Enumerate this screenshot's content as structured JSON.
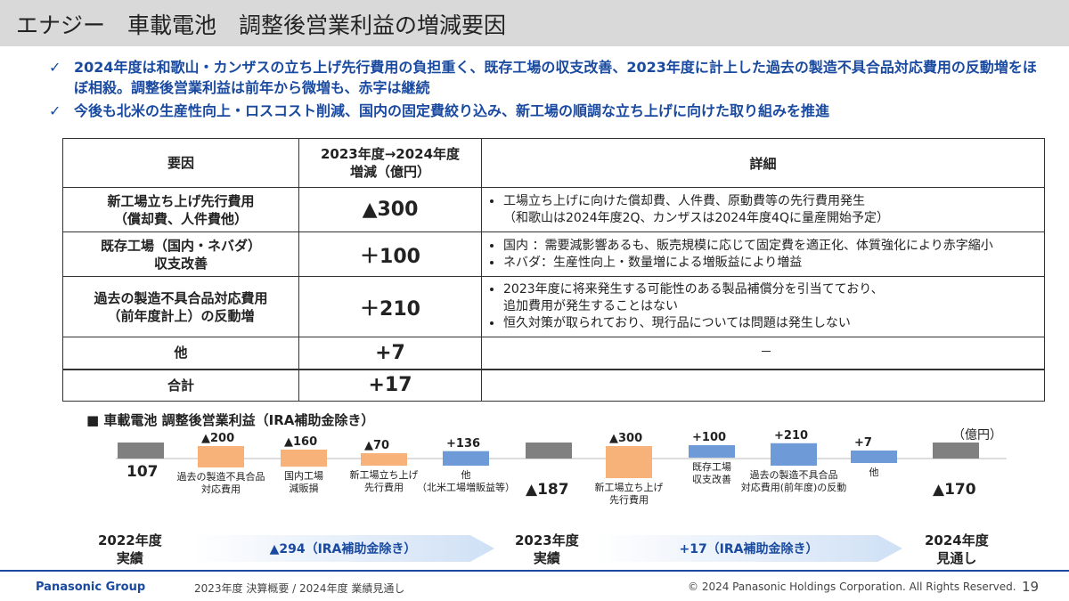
{
  "title": "エナジー　車載電池　調整後営業利益の増減要因",
  "bullets": [
    "2024年度は和歌山・カンザスの立ち上げ先行費用の負担重く、既存工場の収支改善、2023年度に計上した過去の製造不具合品対応費用の反動増をほぼ相殺。調整後営業利益は前年から微増も、赤字は継続",
    "今後も北米の生産性向上・ロスコスト削減、国内の固定費絞り込み、新工場の順調な立ち上げに向けた取り組みを推進"
  ],
  "check_mark": "✓",
  "table": {
    "headers": [
      "要因",
      "2023年度→2024年度",
      "増減（億円）",
      "詳細"
    ],
    "rows": [
      {
        "factor": "新工場立ち上げ先行費用",
        "factor_sub": "（償却費、人件費他）",
        "change": "▲300",
        "details": [
          "工場立ち上げに向けた償却費、人件費、原動費等の先行費用発生",
          "（和歌山は2024年度2Q、カンザスは2024年度4Qに量産開始予定）"
        ]
      },
      {
        "factor": "既存工場（国内・ネバダ）",
        "factor_sub": "収支改善",
        "change": "＋100",
        "details": [
          "国内 ：需要減影響あるも、販売規模に応じて固定費を適正化、体質強化により赤字縮小",
          "ネバダ：生産性向上・数量増による増販益により増益"
        ]
      },
      {
        "factor": "過去の製造不具合品対応費用",
        "factor_sub": "（前年度計上）の反動増",
        "change": "＋210",
        "details": [
          "2023年度に将来発生する可能性のある製品補償分を引当てており、",
          "追加費用が発生することはない",
          "恒久対策が取られており、現行品については問題は発生しない"
        ]
      },
      {
        "factor": "他",
        "factor_sub": "",
        "change": "+7",
        "details": [
          "－"
        ]
      },
      {
        "factor": "合計",
        "factor_sub": "",
        "change": "+17",
        "details": []
      }
    ]
  },
  "chart_title": "■ 車載電池 調整後営業利益（IRA補助金除き）",
  "unit": "（億円）",
  "chart_data": {
    "type": "bar",
    "subtype": "waterfall",
    "categories": [
      "2022年度実績",
      "過去の製造不具合品対応費用",
      "国内工場減販損",
      "新工場立ち上げ先行費用",
      "他（北米工場増販益等）",
      "2023年度実績",
      "新工場立ち上げ先行費用",
      "既存工場収支改善",
      "過去の製造不具合品対応費用(前年度)の反動",
      "他",
      "2024年度見通し"
    ],
    "values": [
      107,
      -200,
      -160,
      -70,
      136,
      -187,
      -300,
      100,
      210,
      7,
      -170
    ],
    "value_labels": [
      "107",
      "▲200",
      "▲160",
      "▲70",
      "+136",
      "▲187",
      "▲300",
      "+100",
      "+210",
      "+7",
      "▲170"
    ],
    "category_labels": [
      "",
      "過去の製造不具合品|対応費用",
      "国内工場|減販損",
      "新工場立ち上げ|先行費用",
      "他|（北米工場増販益等）",
      "",
      "新工場立ち上げ|先行費用",
      "既存工場|収支改善",
      "過去の製造不具合品|対応費用(前年度)の反動",
      "他",
      ""
    ],
    "kinds": [
      "total",
      "delta",
      "delta",
      "delta",
      "delta",
      "total",
      "delta",
      "delta",
      "delta",
      "delta",
      "total"
    ],
    "colors": {
      "total": "#808080",
      "negative": "#f7b27a",
      "positive": "#6f9ad8",
      "arrow": "#cfe0f5"
    }
  },
  "periods": [
    {
      "label": "2022年度",
      "label2": "実績"
    },
    {
      "label": "2023年度",
      "label2": "実績"
    },
    {
      "label": "2024年度",
      "label2": "見通し"
    }
  ],
  "arrows": [
    "▲294（IRA補助金除き）",
    "+17（IRA補助金除き）"
  ],
  "footer": {
    "brand": "Panasonic Group",
    "doc": "2023年度 決算概要 / 2024年度 業績見通し",
    "copyright": "© 2024 Panasonic Holdings Corporation. All Rights Reserved.",
    "page": "19"
  }
}
